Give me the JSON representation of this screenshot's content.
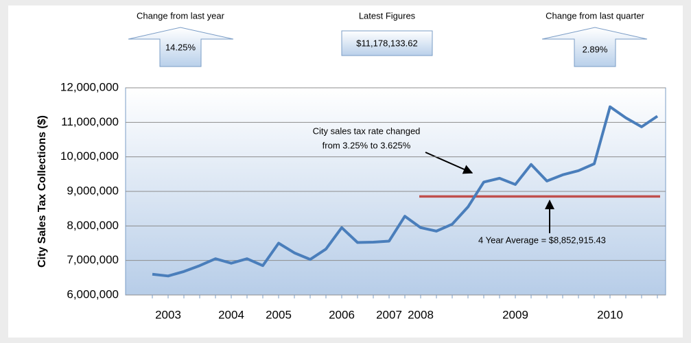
{
  "kpis": [
    {
      "label": "Change from last year",
      "value": "14.25%"
    },
    {
      "label": "Latest Figures",
      "value": "$11,178,133.62"
    },
    {
      "label": "Change from last quarter",
      "value": "2.89%"
    }
  ],
  "chart_data": {
    "type": "line",
    "y_label": "City Sales Tax Collections ($)",
    "categories": [
      null,
      "2003",
      null,
      null,
      null,
      "2004",
      null,
      null,
      "2005",
      null,
      null,
      null,
      "2006",
      null,
      null,
      "2007",
      null,
      "2008",
      null,
      null,
      null,
      null,
      null,
      "2009",
      null,
      null,
      null,
      null,
      null,
      "2010",
      null,
      null,
      null
    ],
    "series": [
      {
        "name": "City Sales Tax Collections",
        "color": "#4a7ebb",
        "values": [
          6600000,
          6550000,
          6680000,
          6850000,
          7050000,
          6920000,
          7050000,
          6850000,
          7500000,
          7220000,
          7030000,
          7330000,
          7950000,
          7520000,
          7530000,
          7560000,
          8280000,
          7950000,
          7850000,
          8050000,
          8550000,
          9270000,
          9380000,
          9200000,
          9780000,
          9300000,
          9480000,
          9600000,
          9800000,
          11450000,
          11130000,
          10870000,
          11178133.62
        ]
      }
    ],
    "average": {
      "value": 8852915.43,
      "color": "#c0504d",
      "label": "4 Year Average = $8,852,915.43"
    },
    "annotation": [
      "City sales tax rate changed",
      "from 3.25% to 3.625%"
    ],
    "ylim": [
      6000000,
      12000000
    ],
    "yticks": [
      {
        "value": 6000000,
        "label": "6,000,000"
      },
      {
        "value": 7000000,
        "label": "7,000,000"
      },
      {
        "value": 8000000,
        "label": "8,000,000"
      },
      {
        "value": 9000000,
        "label": "9,000,000"
      },
      {
        "value": 10000000,
        "label": "10,000,000"
      },
      {
        "value": 11000000,
        "label": "11,000,000"
      },
      {
        "value": 12000000,
        "label": "12,000,000"
      }
    ],
    "grid": true
  }
}
